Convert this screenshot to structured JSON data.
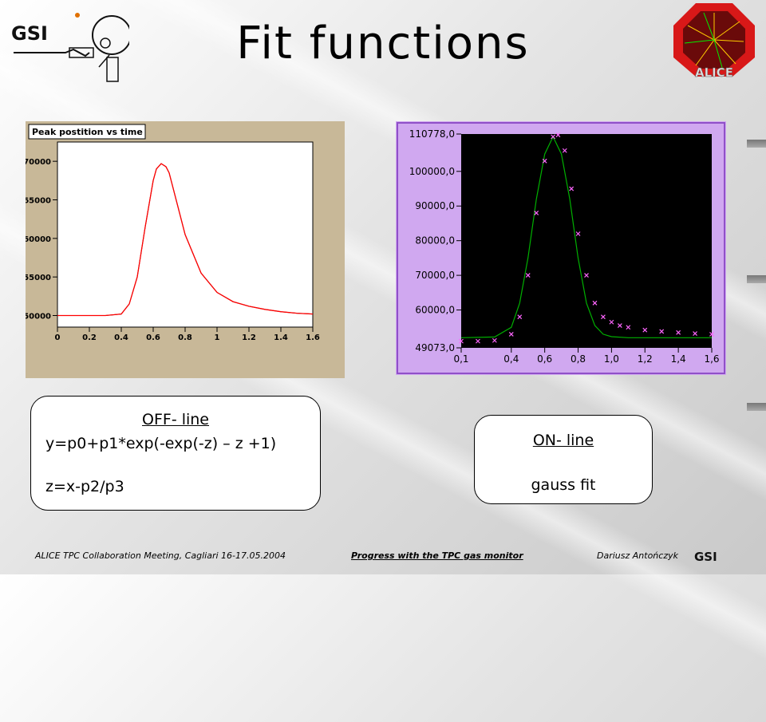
{
  "slide": {
    "title": "Fit functions"
  },
  "logos": {
    "left": {
      "text": "GSI",
      "icon": "gsi-logo"
    },
    "right": {
      "text": "ALICE",
      "icon": "alice-logo"
    }
  },
  "chart_data": [
    {
      "type": "line",
      "title": "Peak postition vs time",
      "xlim": [
        0,
        1.6
      ],
      "ylim": [
        48500,
        72500
      ],
      "x_ticks": [
        0,
        0.2,
        0.4,
        0.6,
        0.8,
        1,
        1.2,
        1.4,
        1.6
      ],
      "x_tick_labels": [
        "0",
        "0.2",
        "0.4",
        "0.6",
        "0.8",
        "1",
        "1.2",
        "1.4",
        "1.6"
      ],
      "y_ticks": [
        50000,
        55000,
        60000,
        65000,
        70000
      ],
      "y_tick_labels": [
        "50000",
        "55000",
        "60000",
        "65000",
        "70000"
      ],
      "grid": false,
      "series": [
        {
          "role": "data",
          "color": "#000000",
          "x": [
            0.0,
            0.1,
            0.2,
            0.3,
            0.4,
            0.45,
            0.5,
            0.55,
            0.6,
            0.62,
            0.65,
            0.68,
            0.7,
            0.75,
            0.8,
            0.9,
            1.0,
            1.1,
            1.2,
            1.3,
            1.4,
            1.5,
            1.6
          ],
          "y": [
            50000,
            50000,
            50000,
            50000,
            50200,
            51500,
            55000,
            61500,
            67500,
            69000,
            69700,
            69300,
            68500,
            64500,
            60500,
            55500,
            53000,
            51800,
            51200,
            50800,
            50500,
            50300,
            50200
          ]
        },
        {
          "role": "fit",
          "color": "#ff0000",
          "x": [
            0.0,
            0.1,
            0.2,
            0.3,
            0.4,
            0.45,
            0.5,
            0.55,
            0.6,
            0.62,
            0.65,
            0.68,
            0.7,
            0.75,
            0.8,
            0.9,
            1.0,
            1.1,
            1.2,
            1.3,
            1.4,
            1.5,
            1.6
          ],
          "y": [
            50000,
            50000,
            50000,
            50000,
            50200,
            51500,
            55000,
            61500,
            67500,
            69000,
            69700,
            69300,
            68500,
            64500,
            60500,
            55500,
            53000,
            51800,
            51200,
            50800,
            50500,
            50300,
            50200
          ]
        }
      ]
    },
    {
      "type": "scatter",
      "xlim": [
        0.1,
        1.6
      ],
      "ylim": [
        49073,
        110778
      ],
      "x_ticks": [
        0.1,
        0.4,
        0.6,
        0.8,
        1.0,
        1.2,
        1.4,
        1.6
      ],
      "x_tick_labels": [
        "0,1",
        "0,4",
        "0,6",
        "0,8",
        "1,0",
        "1,2",
        "1,4",
        "1,6"
      ],
      "y_ticks": [
        49073,
        60000,
        70000,
        80000,
        90000,
        100000,
        110778
      ],
      "y_tick_labels": [
        "49073,0",
        "60000,0",
        "70000,0",
        "80000,0",
        "90000,0",
        "100000,0",
        "110778,0"
      ],
      "grid": false,
      "series": [
        {
          "role": "data",
          "color": "#ff66ff",
          "x": [
            0.1,
            0.2,
            0.3,
            0.4,
            0.45,
            0.5,
            0.55,
            0.6,
            0.65,
            0.68,
            0.72,
            0.76,
            0.8,
            0.85,
            0.9,
            0.95,
            1.0,
            1.05,
            1.1,
            1.2,
            1.3,
            1.4,
            1.5,
            1.6
          ],
          "y": [
            51000,
            51000,
            51200,
            53000,
            58000,
            70000,
            88000,
            103000,
            110000,
            110500,
            106000,
            95000,
            82000,
            70000,
            62000,
            58000,
            56500,
            55500,
            55000,
            54200,
            53800,
            53500,
            53200,
            53000
          ]
        },
        {
          "role": "fit",
          "color": "#00aa00",
          "x": [
            0.1,
            0.3,
            0.4,
            0.45,
            0.5,
            0.55,
            0.6,
            0.65,
            0.7,
            0.75,
            0.8,
            0.85,
            0.9,
            0.95,
            1.0,
            1.1,
            1.2,
            1.4,
            1.6
          ],
          "y": [
            52000,
            52200,
            55000,
            62000,
            75000,
            92000,
            105000,
            110000,
            105000,
            92000,
            75000,
            62000,
            55500,
            53000,
            52300,
            52000,
            52000,
            52000,
            52000
          ]
        }
      ]
    }
  ],
  "formulas": {
    "off_line": {
      "heading": "OFF- line",
      "equation": "y=p0+p1*exp(-exp(-z) – z +1)",
      "substitution": "z=x-p2/p3"
    },
    "on_line": {
      "heading": "ON- line",
      "method": "gauss fit"
    }
  },
  "footer": {
    "meeting": "ALICE TPC Collaboration Meeting, Cagliari 16-17.05.2004",
    "talk_title": "Progress with the TPC gas monitor",
    "author": "Dariusz Antończyk"
  }
}
